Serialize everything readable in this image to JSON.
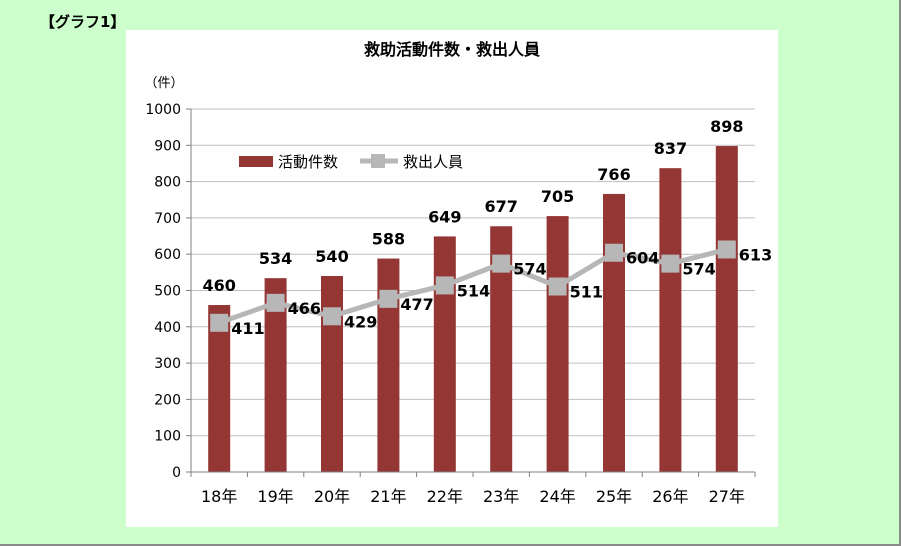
{
  "header": {
    "label": "【グラフ1】"
  },
  "colors": {
    "bar": "#943634",
    "line": "#b7b7b7",
    "marker": "#b7b7b7",
    "grid": "#bfbfbf",
    "background": "#ccffcc"
  },
  "chart_data": {
    "type": "bar+line",
    "title": "救助活動件数・救出人員",
    "ylabel": "（件）",
    "xlabel": "",
    "categories": [
      "18年",
      "19年",
      "20年",
      "21年",
      "22年",
      "23年",
      "24年",
      "25年",
      "26年",
      "27年"
    ],
    "ylim": [
      0,
      1000
    ],
    "yticks": [
      "0",
      "100",
      "200",
      "300",
      "400",
      "500",
      "600",
      "700",
      "800",
      "900",
      "1000"
    ],
    "grid": true,
    "legend": {
      "position": "top-left",
      "items": [
        "活動件数",
        "救出人員"
      ]
    },
    "series": [
      {
        "name": "活動件数",
        "type": "bar",
        "values": [
          460,
          534,
          540,
          588,
          649,
          677,
          705,
          766,
          837,
          898
        ],
        "labels": [
          "460",
          "534",
          "540",
          "588",
          "649",
          "677",
          "705",
          "766",
          "837",
          "898"
        ]
      },
      {
        "name": "救出人員",
        "type": "line",
        "values": [
          411,
          466,
          429,
          477,
          514,
          574,
          511,
          604,
          574,
          613
        ],
        "labels": [
          "411",
          "466",
          "429",
          "477",
          "514",
          "574",
          "511",
          "604",
          "574",
          "613"
        ]
      }
    ]
  }
}
